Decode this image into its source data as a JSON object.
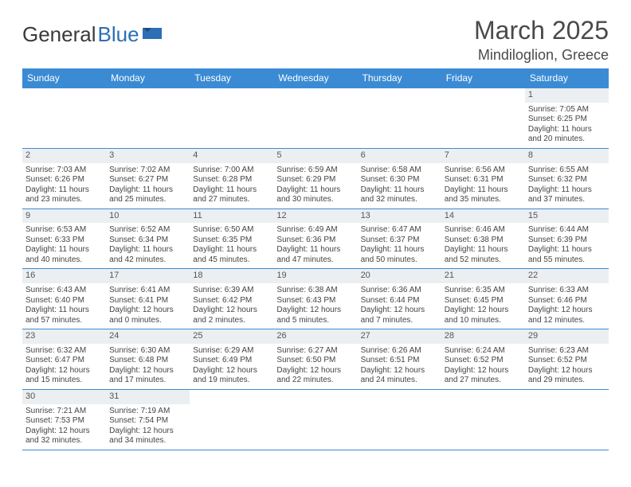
{
  "brand": {
    "part1": "General",
    "part2": "Blue"
  },
  "title": "March 2025",
  "location": "Mindiloglion, Greece",
  "colors": {
    "header_bg": "#3b8bd4",
    "header_text": "#ffffff",
    "cell_border": "#3b8bd4",
    "daynum_bg": "#eceff1",
    "text": "#444444",
    "logo_dark": "#3a3a3a",
    "logo_blue": "#2c6fb5"
  },
  "dayHeaders": [
    "Sunday",
    "Monday",
    "Tuesday",
    "Wednesday",
    "Thursday",
    "Friday",
    "Saturday"
  ],
  "weeks": [
    [
      {
        "n": "",
        "empty": true
      },
      {
        "n": "",
        "empty": true
      },
      {
        "n": "",
        "empty": true
      },
      {
        "n": "",
        "empty": true
      },
      {
        "n": "",
        "empty": true
      },
      {
        "n": "",
        "empty": true
      },
      {
        "n": "1",
        "sr": "Sunrise: 7:05 AM",
        "ss": "Sunset: 6:25 PM",
        "dl": "Daylight: 11 hours and 20 minutes."
      }
    ],
    [
      {
        "n": "2",
        "sr": "Sunrise: 7:03 AM",
        "ss": "Sunset: 6:26 PM",
        "dl": "Daylight: 11 hours and 23 minutes."
      },
      {
        "n": "3",
        "sr": "Sunrise: 7:02 AM",
        "ss": "Sunset: 6:27 PM",
        "dl": "Daylight: 11 hours and 25 minutes."
      },
      {
        "n": "4",
        "sr": "Sunrise: 7:00 AM",
        "ss": "Sunset: 6:28 PM",
        "dl": "Daylight: 11 hours and 27 minutes."
      },
      {
        "n": "5",
        "sr": "Sunrise: 6:59 AM",
        "ss": "Sunset: 6:29 PM",
        "dl": "Daylight: 11 hours and 30 minutes."
      },
      {
        "n": "6",
        "sr": "Sunrise: 6:58 AM",
        "ss": "Sunset: 6:30 PM",
        "dl": "Daylight: 11 hours and 32 minutes."
      },
      {
        "n": "7",
        "sr": "Sunrise: 6:56 AM",
        "ss": "Sunset: 6:31 PM",
        "dl": "Daylight: 11 hours and 35 minutes."
      },
      {
        "n": "8",
        "sr": "Sunrise: 6:55 AM",
        "ss": "Sunset: 6:32 PM",
        "dl": "Daylight: 11 hours and 37 minutes."
      }
    ],
    [
      {
        "n": "9",
        "sr": "Sunrise: 6:53 AM",
        "ss": "Sunset: 6:33 PM",
        "dl": "Daylight: 11 hours and 40 minutes."
      },
      {
        "n": "10",
        "sr": "Sunrise: 6:52 AM",
        "ss": "Sunset: 6:34 PM",
        "dl": "Daylight: 11 hours and 42 minutes."
      },
      {
        "n": "11",
        "sr": "Sunrise: 6:50 AM",
        "ss": "Sunset: 6:35 PM",
        "dl": "Daylight: 11 hours and 45 minutes."
      },
      {
        "n": "12",
        "sr": "Sunrise: 6:49 AM",
        "ss": "Sunset: 6:36 PM",
        "dl": "Daylight: 11 hours and 47 minutes."
      },
      {
        "n": "13",
        "sr": "Sunrise: 6:47 AM",
        "ss": "Sunset: 6:37 PM",
        "dl": "Daylight: 11 hours and 50 minutes."
      },
      {
        "n": "14",
        "sr": "Sunrise: 6:46 AM",
        "ss": "Sunset: 6:38 PM",
        "dl": "Daylight: 11 hours and 52 minutes."
      },
      {
        "n": "15",
        "sr": "Sunrise: 6:44 AM",
        "ss": "Sunset: 6:39 PM",
        "dl": "Daylight: 11 hours and 55 minutes."
      }
    ],
    [
      {
        "n": "16",
        "sr": "Sunrise: 6:43 AM",
        "ss": "Sunset: 6:40 PM",
        "dl": "Daylight: 11 hours and 57 minutes."
      },
      {
        "n": "17",
        "sr": "Sunrise: 6:41 AM",
        "ss": "Sunset: 6:41 PM",
        "dl": "Daylight: 12 hours and 0 minutes."
      },
      {
        "n": "18",
        "sr": "Sunrise: 6:39 AM",
        "ss": "Sunset: 6:42 PM",
        "dl": "Daylight: 12 hours and 2 minutes."
      },
      {
        "n": "19",
        "sr": "Sunrise: 6:38 AM",
        "ss": "Sunset: 6:43 PM",
        "dl": "Daylight: 12 hours and 5 minutes."
      },
      {
        "n": "20",
        "sr": "Sunrise: 6:36 AM",
        "ss": "Sunset: 6:44 PM",
        "dl": "Daylight: 12 hours and 7 minutes."
      },
      {
        "n": "21",
        "sr": "Sunrise: 6:35 AM",
        "ss": "Sunset: 6:45 PM",
        "dl": "Daylight: 12 hours and 10 minutes."
      },
      {
        "n": "22",
        "sr": "Sunrise: 6:33 AM",
        "ss": "Sunset: 6:46 PM",
        "dl": "Daylight: 12 hours and 12 minutes."
      }
    ],
    [
      {
        "n": "23",
        "sr": "Sunrise: 6:32 AM",
        "ss": "Sunset: 6:47 PM",
        "dl": "Daylight: 12 hours and 15 minutes."
      },
      {
        "n": "24",
        "sr": "Sunrise: 6:30 AM",
        "ss": "Sunset: 6:48 PM",
        "dl": "Daylight: 12 hours and 17 minutes."
      },
      {
        "n": "25",
        "sr": "Sunrise: 6:29 AM",
        "ss": "Sunset: 6:49 PM",
        "dl": "Daylight: 12 hours and 19 minutes."
      },
      {
        "n": "26",
        "sr": "Sunrise: 6:27 AM",
        "ss": "Sunset: 6:50 PM",
        "dl": "Daylight: 12 hours and 22 minutes."
      },
      {
        "n": "27",
        "sr": "Sunrise: 6:26 AM",
        "ss": "Sunset: 6:51 PM",
        "dl": "Daylight: 12 hours and 24 minutes."
      },
      {
        "n": "28",
        "sr": "Sunrise: 6:24 AM",
        "ss": "Sunset: 6:52 PM",
        "dl": "Daylight: 12 hours and 27 minutes."
      },
      {
        "n": "29",
        "sr": "Sunrise: 6:23 AM",
        "ss": "Sunset: 6:52 PM",
        "dl": "Daylight: 12 hours and 29 minutes."
      }
    ],
    [
      {
        "n": "30",
        "sr": "Sunrise: 7:21 AM",
        "ss": "Sunset: 7:53 PM",
        "dl": "Daylight: 12 hours and 32 minutes."
      },
      {
        "n": "31",
        "sr": "Sunrise: 7:19 AM",
        "ss": "Sunset: 7:54 PM",
        "dl": "Daylight: 12 hours and 34 minutes."
      },
      {
        "n": "",
        "empty": true
      },
      {
        "n": "",
        "empty": true
      },
      {
        "n": "",
        "empty": true
      },
      {
        "n": "",
        "empty": true
      },
      {
        "n": "",
        "empty": true
      }
    ]
  ]
}
